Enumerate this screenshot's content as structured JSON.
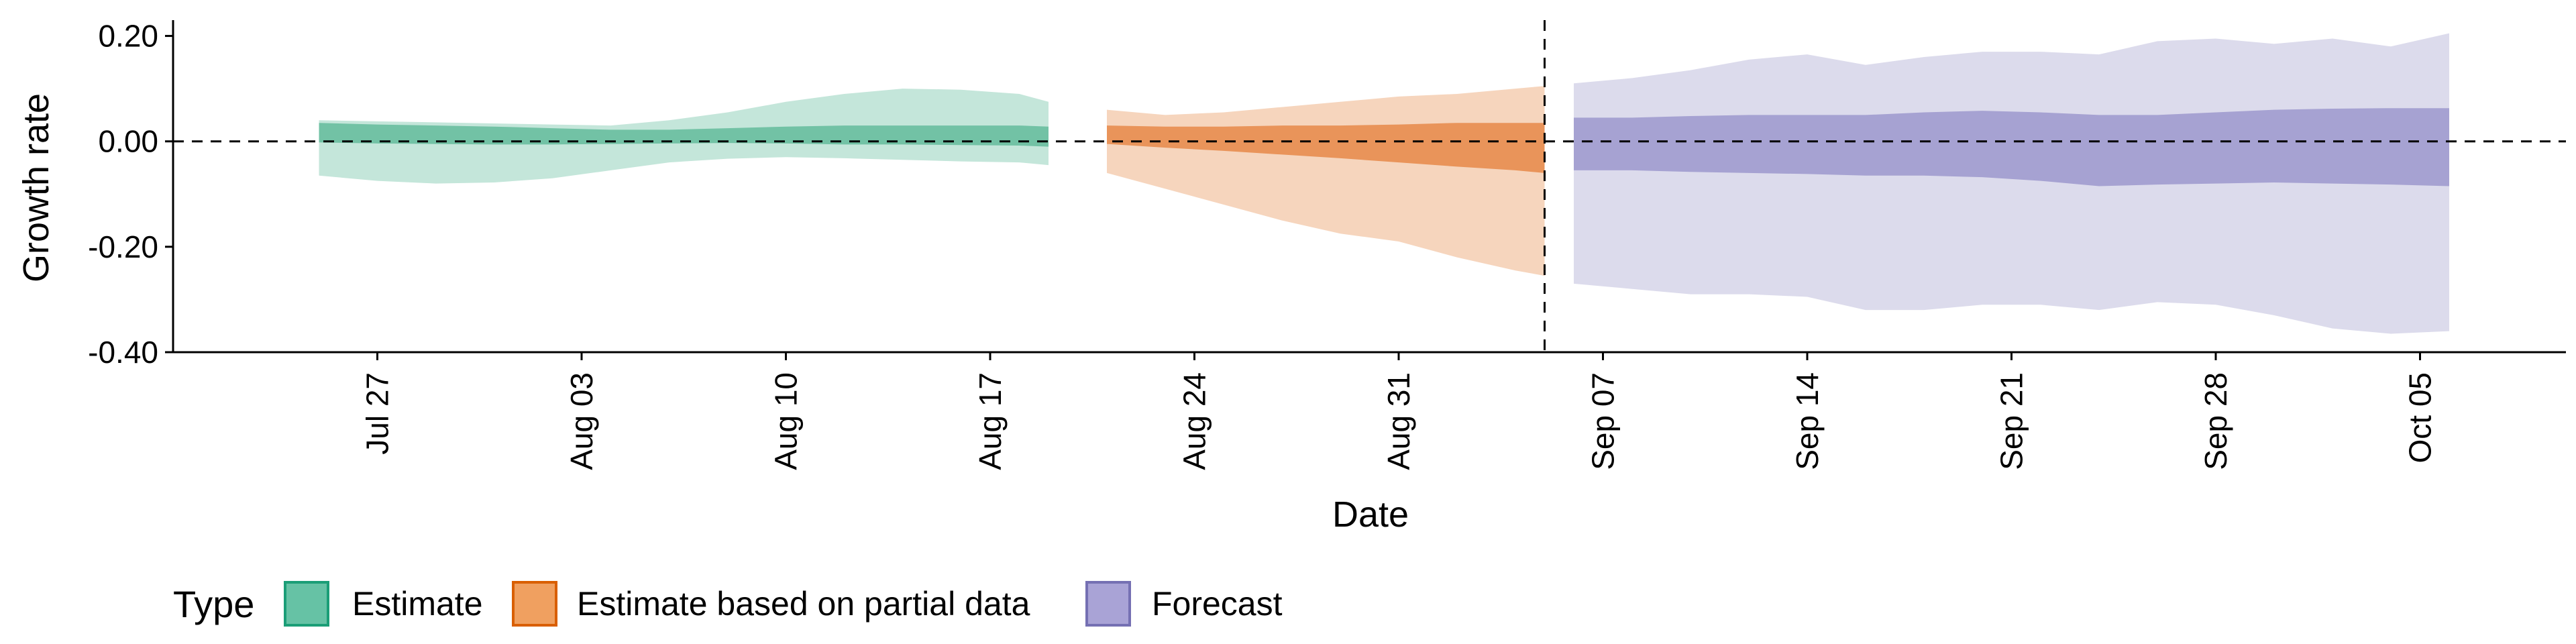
{
  "chart_data": {
    "type": "area",
    "title": "",
    "xlabel": "Date",
    "ylabel": "Growth rate",
    "ylim": [
      -0.4,
      0.23
    ],
    "yticks": [
      0.2,
      0.0,
      -0.2,
      -0.4
    ],
    "ytick_labels": [
      "0.20",
      "0.00",
      "-0.20",
      "-0.40"
    ],
    "xlim": [
      "2021-07-20",
      "2021-10-10"
    ],
    "xticks": [
      "2021-07-27",
      "2021-08-03",
      "2021-08-10",
      "2021-08-17",
      "2021-08-24",
      "2021-08-31",
      "2021-09-07",
      "2021-09-14",
      "2021-09-21",
      "2021-09-28",
      "2021-10-05"
    ],
    "xtick_labels": [
      "Jul 27",
      "Aug 03",
      "Aug 10",
      "Aug 17",
      "Aug 24",
      "Aug 31",
      "Sep 07",
      "Sep 14",
      "Sep 21",
      "Sep 28",
      "Oct 05"
    ],
    "reference_lines": {
      "hline_y": 0.0,
      "vline_x": "2021-09-05"
    },
    "grid": false,
    "legend": {
      "title": "Type",
      "placement": "bottom-left",
      "entries": [
        {
          "label": "Estimate",
          "fill": "#66c2a5",
          "border": "#1b9e77"
        },
        {
          "label": "Estimate based on partial data",
          "fill": "#f0a060",
          "border": "#d95f02"
        },
        {
          "label": "Forecast",
          "fill": "#a9a3d6",
          "border": "#7570b3"
        }
      ]
    },
    "series": [
      {
        "name": "Estimate",
        "outer_fill": "#c4e6da",
        "inner_fill": "#72c2a5",
        "x": [
          "2021-07-25",
          "2021-07-27",
          "2021-07-29",
          "2021-07-31",
          "2021-08-02",
          "2021-08-04",
          "2021-08-06",
          "2021-08-08",
          "2021-08-10",
          "2021-08-12",
          "2021-08-14",
          "2021-08-16",
          "2021-08-18",
          "2021-08-19"
        ],
        "outer_upper": [
          0.04,
          0.038,
          0.036,
          0.034,
          0.032,
          0.03,
          0.04,
          0.055,
          0.075,
          0.09,
          0.1,
          0.098,
          0.09,
          0.075
        ],
        "outer_lower": [
          -0.065,
          -0.075,
          -0.08,
          -0.078,
          -0.07,
          -0.055,
          -0.04,
          -0.033,
          -0.03,
          -0.032,
          -0.035,
          -0.038,
          -0.04,
          -0.045
        ],
        "inner_upper": [
          0.035,
          0.032,
          0.03,
          0.028,
          0.025,
          0.022,
          0.022,
          0.025,
          0.028,
          0.03,
          0.03,
          0.03,
          0.03,
          0.028
        ],
        "inner_lower": [
          -0.002,
          -0.004,
          -0.005,
          -0.006,
          -0.006,
          -0.005,
          -0.004,
          -0.003,
          -0.004,
          -0.006,
          -0.006,
          -0.007,
          -0.008,
          -0.01
        ]
      },
      {
        "name": "Estimate based on partial data",
        "outer_fill": "#f6d5bd",
        "inner_fill": "#e9945a",
        "x": [
          "2021-08-21",
          "2021-08-23",
          "2021-08-25",
          "2021-08-27",
          "2021-08-29",
          "2021-08-31",
          "2021-09-02",
          "2021-09-04",
          "2021-09-05"
        ],
        "outer_upper": [
          0.06,
          0.05,
          0.055,
          0.065,
          0.075,
          0.085,
          0.09,
          0.1,
          0.105
        ],
        "outer_lower": [
          -0.06,
          -0.09,
          -0.12,
          -0.15,
          -0.175,
          -0.19,
          -0.22,
          -0.245,
          -0.255
        ],
        "inner_upper": [
          0.03,
          0.028,
          0.028,
          0.03,
          0.03,
          0.032,
          0.035,
          0.035,
          0.035
        ],
        "inner_lower": [
          -0.005,
          -0.012,
          -0.018,
          -0.025,
          -0.032,
          -0.04,
          -0.048,
          -0.055,
          -0.06
        ]
      },
      {
        "name": "Forecast",
        "outer_fill": "#dcdbec",
        "inner_fill": "#a6a2d2",
        "x": [
          "2021-09-06",
          "2021-09-08",
          "2021-09-10",
          "2021-09-12",
          "2021-09-14",
          "2021-09-16",
          "2021-09-18",
          "2021-09-20",
          "2021-09-22",
          "2021-09-24",
          "2021-09-26",
          "2021-09-28",
          "2021-09-30",
          "2021-10-02",
          "2021-10-04",
          "2021-10-06"
        ],
        "outer_upper": [
          0.11,
          0.12,
          0.135,
          0.155,
          0.165,
          0.145,
          0.16,
          0.17,
          0.17,
          0.165,
          0.19,
          0.195,
          0.185,
          0.195,
          0.18,
          0.205
        ],
        "outer_lower": [
          -0.27,
          -0.28,
          -0.29,
          -0.29,
          -0.295,
          -0.32,
          -0.32,
          -0.31,
          -0.31,
          -0.32,
          -0.305,
          -0.31,
          -0.33,
          -0.355,
          -0.365,
          -0.36
        ],
        "inner_upper": [
          0.045,
          0.045,
          0.048,
          0.05,
          0.05,
          0.05,
          0.055,
          0.058,
          0.055,
          0.05,
          0.05,
          0.055,
          0.06,
          0.062,
          0.063,
          0.063
        ],
        "inner_lower": [
          -0.055,
          -0.055,
          -0.058,
          -0.06,
          -0.062,
          -0.065,
          -0.065,
          -0.068,
          -0.075,
          -0.085,
          -0.082,
          -0.08,
          -0.078,
          -0.08,
          -0.082,
          -0.085
        ]
      }
    ]
  }
}
